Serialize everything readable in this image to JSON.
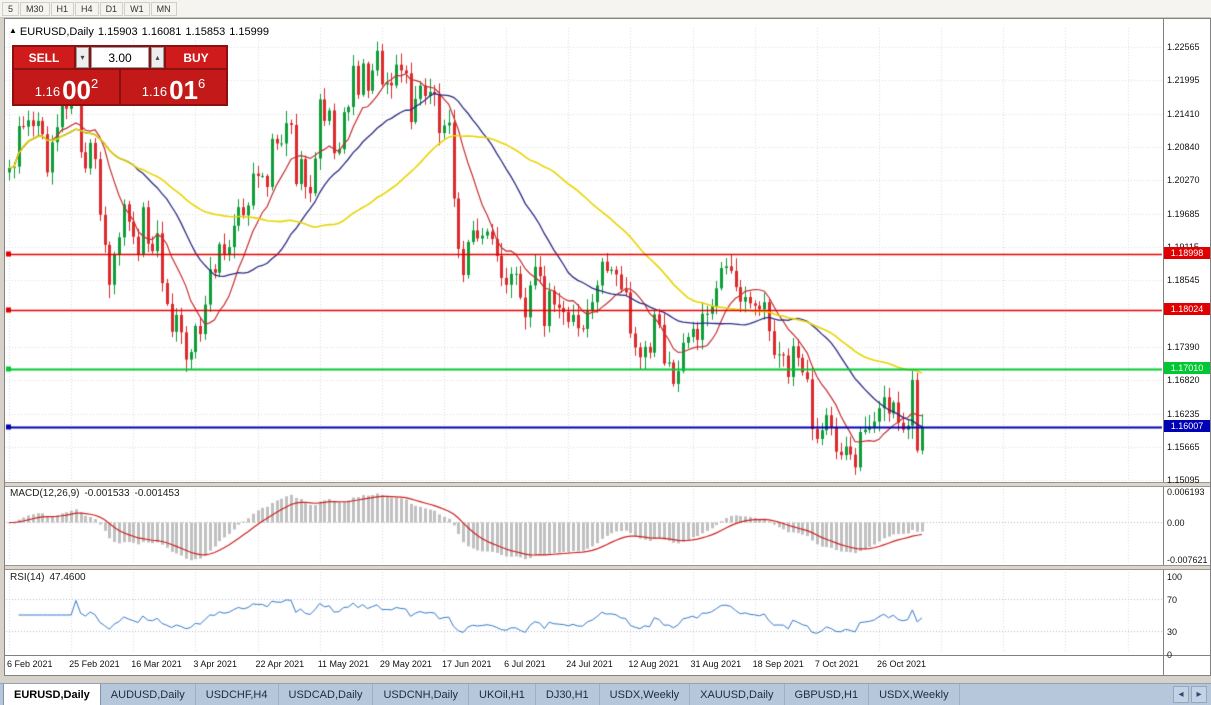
{
  "toolbar": {
    "timeframes": [
      "5",
      "M30",
      "H1",
      "H4",
      "D1",
      "W1",
      "MN"
    ]
  },
  "chart": {
    "symbol_label": "EURUSD,Daily",
    "open": "1.15903",
    "high": "1.16081",
    "low": "1.15853",
    "close": "1.15999"
  },
  "trade_panel": {
    "sell_label": "SELL",
    "buy_label": "BUY",
    "volume": "3.00",
    "sell_price": {
      "base": "1.16",
      "big": "00",
      "sup": "2"
    },
    "buy_price": {
      "base": "1.16",
      "big": "01",
      "sup": "6"
    }
  },
  "icons": {
    "chart_marker": "▲",
    "volume_down": "▾",
    "volume_up": "▴",
    "tab_scroll_left": "◂",
    "tab_scroll_right": "▸"
  },
  "indicators": {
    "macd": {
      "label": "MACD(12,26,9)",
      "value1": "-0.001533",
      "value2": "-0.001453",
      "scale_labels": [
        "0.006193",
        "0.00",
        "-0.007621"
      ]
    },
    "rsi": {
      "label": "RSI(14)",
      "value": "47.4600",
      "scale_labels": [
        "100",
        "70",
        "30",
        "0"
      ]
    }
  },
  "tabs": [
    {
      "label": "EURUSD,Daily",
      "active": true
    },
    {
      "label": "AUDUSD,Daily"
    },
    {
      "label": "USDCHF,H4"
    },
    {
      "label": "USDCAD,Daily"
    },
    {
      "label": "USDCNH,Daily"
    },
    {
      "label": "UKOil,H1"
    },
    {
      "label": "DJ30,H1"
    },
    {
      "label": "USDX,Weekly"
    },
    {
      "label": "XAUUSD,Daily"
    },
    {
      "label": "GBPUSD,H1"
    },
    {
      "label": "USDX,Weekly"
    }
  ],
  "chart_data": {
    "type": "candlestick",
    "symbol": "EURUSD",
    "timeframe": "Daily",
    "current": {
      "open": 1.15903,
      "high": 1.16081,
      "low": 1.15853,
      "close": 1.15999
    },
    "first_open": 1.204,
    "closes": [
      1.2048,
      1.205,
      1.212,
      1.2119,
      1.213,
      1.212,
      1.2129,
      1.2106,
      1.204,
      1.2092,
      1.2118,
      1.2157,
      1.215,
      1.2168,
      1.2175,
      1.2075,
      1.2047,
      1.2091,
      1.2063,
      1.1967,
      1.1915,
      1.1846,
      1.1899,
      1.1928,
      1.1985,
      1.1955,
      1.1929,
      1.1899,
      1.198,
      1.1917,
      1.1904,
      1.1935,
      1.1849,
      1.1813,
      1.1765,
      1.1794,
      1.1764,
      1.1717,
      1.173,
      1.1775,
      1.1761,
      1.1812,
      1.1873,
      1.1867,
      1.1916,
      1.1899,
      1.1911,
      1.1948,
      1.198,
      1.1966,
      1.1983,
      1.2038,
      1.2034,
      1.2034,
      1.2015,
      1.2098,
      1.209,
      1.209,
      1.2125,
      1.2122,
      1.202,
      1.2063,
      1.2015,
      1.2004,
      1.2064,
      1.2166,
      1.2129,
      1.2147,
      1.2073,
      1.208,
      1.2144,
      1.2153,
      1.2224,
      1.2174,
      1.2228,
      1.2181,
      1.2216,
      1.225,
      1.2192,
      1.2195,
      1.219,
      1.2226,
      1.2216,
      1.2211,
      1.2127,
      1.2167,
      1.219,
      1.2172,
      1.2179,
      1.2175,
      1.2108,
      1.2121,
      1.2126,
      1.1995,
      1.1908,
      1.1863,
      1.192,
      1.194,
      1.1926,
      1.1931,
      1.1938,
      1.1925,
      1.1896,
      1.1858,
      1.1846,
      1.1865,
      1.1865,
      1.1824,
      1.179,
      1.1845,
      1.1877,
      1.1861,
      1.1775,
      1.1836,
      1.1812,
      1.1806,
      1.1799,
      1.1782,
      1.1794,
      1.1771,
      1.177,
      1.1802,
      1.1816,
      1.1845,
      1.1886,
      1.187,
      1.1872,
      1.1864,
      1.1838,
      1.1833,
      1.1762,
      1.1738,
      1.1721,
      1.1739,
      1.1729,
      1.1795,
      1.1777,
      1.171,
      1.1712,
      1.1675,
      1.1697,
      1.1746,
      1.1756,
      1.177,
      1.1751,
      1.1796,
      1.1796,
      1.1809,
      1.184,
      1.1875,
      1.1878,
      1.187,
      1.1842,
      1.1817,
      1.1825,
      1.1814,
      1.181,
      1.1804,
      1.1816,
      1.1766,
      1.1725,
      1.1726,
      1.1724,
      1.1687,
      1.174,
      1.172,
      1.1695,
      1.1683,
      1.1597,
      1.158,
      1.1595,
      1.1621,
      1.1599,
      1.1558,
      1.1552,
      1.1567,
      1.1553,
      1.1531,
      1.1592,
      1.1596,
      1.1601,
      1.161,
      1.1633,
      1.1652,
      1.1624,
      1.1643,
      1.1608,
      1.1596,
      1.1603,
      1.1682,
      1.156,
      1.16
    ],
    "x_labels": [
      "6 Feb 2021",
      "25 Feb 2021",
      "16 Mar 2021",
      "3 Apr 2021",
      "22 Apr 2021",
      "11 May 2021",
      "29 May 2021",
      "17 Jun 2021",
      "6 Jul 2021",
      "24 Jul 2021",
      "12 Aug 2021",
      "31 Aug 2021",
      "18 Sep 2021",
      "7 Oct 2021",
      "26 Oct 2021"
    ],
    "x_label_step": 13,
    "y_axis": {
      "labels": [
        1.22565,
        1.21995,
        1.2141,
        1.2084,
        1.2027,
        1.19685,
        1.19115,
        1.18545,
        1.1739,
        1.1682,
        1.16235,
        1.15665,
        1.15095
      ],
      "min": 1.1508,
      "max": 1.2289
    },
    "horizontal_lines": [
      {
        "price": 1.18998,
        "color": "#e00000",
        "width": 1.4
      },
      {
        "price": 1.18024,
        "color": "#e00000",
        "width": 1.4
      },
      {
        "price": 1.1701,
        "color": "#00c832",
        "width": 2
      },
      {
        "price": 1.16007,
        "color": "#0000b4",
        "width": 2
      }
    ],
    "overlays": [
      {
        "name": "sma-fast",
        "period": 10,
        "color": "#c43032",
        "width": 1.2
      },
      {
        "name": "sma-mid",
        "period": 25,
        "color": "#2c2c84",
        "width": 1.3
      },
      {
        "name": "sma-slow",
        "period": 50,
        "color": "#e8d400",
        "width": 1.6
      }
    ],
    "colors": {
      "up": "#0f9d3a",
      "down": "#dd2a2c"
    },
    "macd": {
      "fast": 12,
      "slow": 26,
      "signal": 9,
      "scale": {
        "max": 0.006193,
        "zero": 0.0,
        "min": -0.007621
      }
    },
    "macd_colors": {
      "histogram": "#c0c0c0",
      "signal": "#cc2222"
    },
    "rsi": {
      "period": 14,
      "levels": [
        100,
        70,
        30,
        0
      ],
      "dashed_levels": [
        70,
        30
      ]
    },
    "rsi_color": "#3579c8"
  }
}
